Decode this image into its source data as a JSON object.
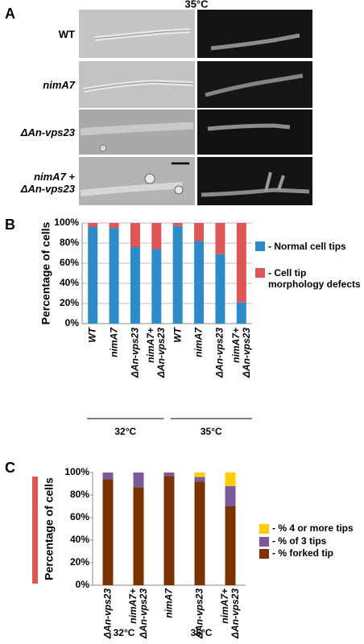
{
  "panel_labels": [
    "A",
    "B",
    "C"
  ],
  "panel_a": {
    "temperature": "35°C",
    "rows": [
      "WT",
      "nimA7",
      "ΔAn-vps23",
      "nimA7 +\nΔAn-vps23"
    ]
  },
  "chart_data": [
    {
      "type": "bar",
      "stacked": true,
      "ylabel": "Percentage of cells",
      "categories": [
        "WT",
        "nimA7",
        "ΔAn-vps23",
        "nimA7+\nΔAn-vps23",
        "WT",
        "nimA7",
        "ΔAn-vps23",
        "nimA7+\nΔAn-vps23"
      ],
      "groups": [
        "32°C",
        "35°C"
      ],
      "series": [
        {
          "name": "- Normal cell tips",
          "color": "#2e8bc9",
          "values": [
            96,
            95,
            76,
            74,
            97,
            82,
            69,
            21
          ]
        },
        {
          "name": "- Cell tip morphology defects",
          "color": "#df5656",
          "values": [
            4,
            5,
            24,
            26,
            3,
            18,
            31,
            79
          ]
        }
      ],
      "ylim": [
        0,
        100
      ],
      "yticks": [
        {
          "value": 0,
          "label": "0%"
        },
        {
          "value": 20,
          "label": "20%"
        },
        {
          "value": 40,
          "label": "40%"
        },
        {
          "value": 60,
          "label": "60%"
        },
        {
          "value": 80,
          "label": "80%"
        },
        {
          "value": 100,
          "label": "100%"
        }
      ],
      "grid": true
    },
    {
      "type": "bar",
      "stacked": true,
      "ylabel": "Percentage of cells",
      "categories": [
        "ΔAn-vps23",
        "nimA7+\nΔAn-vps23",
        "nimA7",
        "ΔAn-vps23",
        "nimA7+\nΔAn-vps23"
      ],
      "groups": [
        "32°C",
        "35°C"
      ],
      "series": [
        {
          "name": "- % forked tip",
          "color": "#7a3300",
          "values": [
            94,
            87,
            97,
            92,
            70
          ]
        },
        {
          "name": "- % of 3 tips",
          "color": "#7b5a9a",
          "values": [
            6,
            13,
            3,
            4,
            18
          ]
        },
        {
          "name": "- % 4 or more tips",
          "color": "#ffcc00",
          "values": [
            0,
            0,
            0,
            4,
            12
          ]
        }
      ],
      "ylim": [
        0,
        100
      ],
      "yticks": [
        {
          "value": 0,
          "label": "0%"
        },
        {
          "value": 20,
          "label": "20%"
        },
        {
          "value": 40,
          "label": "40%"
        },
        {
          "value": 60,
          "label": "60%"
        },
        {
          "value": 80,
          "label": "80%"
        },
        {
          "value": 100,
          "label": "100%"
        }
      ],
      "grid": false
    }
  ]
}
